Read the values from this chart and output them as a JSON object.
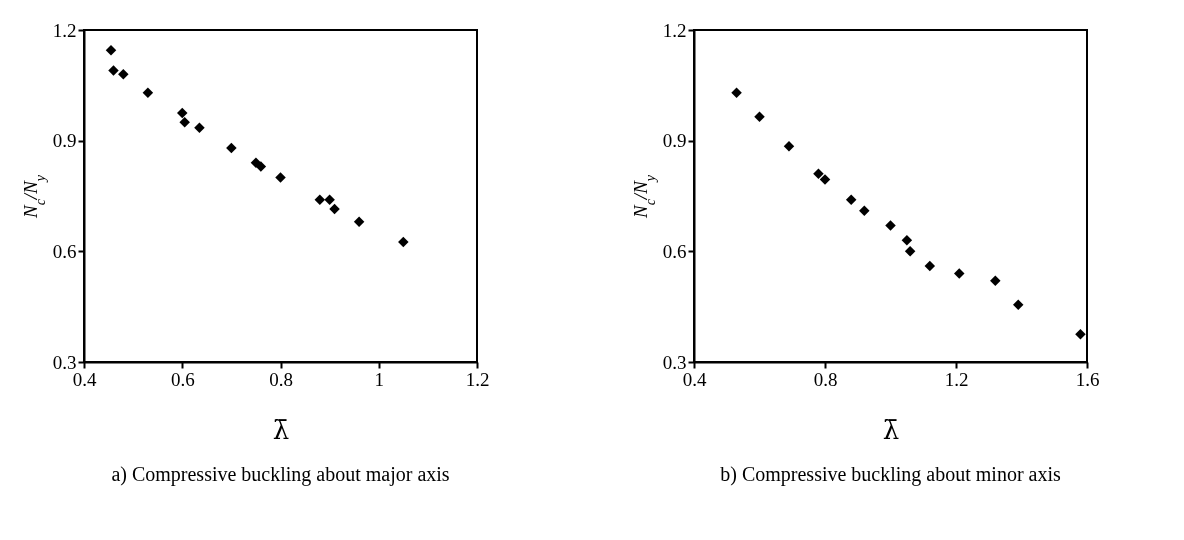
{
  "chart_data": [
    {
      "type": "scatter",
      "title": "a) Compressive buckling about major axis",
      "xlabel": "λ̄",
      "ylabel": "N$_{c}$/N$_{y}$",
      "marker": "diamond",
      "grid": false,
      "xlim": [
        0.4,
        1.2
      ],
      "xticks": [
        0.4,
        0.6,
        0.8,
        1,
        1.2
      ],
      "ylim": [
        0.3,
        1.2
      ],
      "yticks": [
        0.3,
        0.6,
        0.9,
        1.2
      ],
      "series": [
        {
          "color": "#000000",
          "x": [
            0.455,
            0.46,
            0.48,
            0.53,
            0.6,
            0.605,
            0.635,
            0.7,
            0.75,
            0.76,
            0.8,
            0.88,
            0.9,
            0.91,
            0.96,
            1.05
          ],
          "values": [
            1.145,
            1.09,
            1.08,
            1.03,
            0.975,
            0.95,
            0.935,
            0.88,
            0.84,
            0.83,
            0.8,
            0.74,
            0.74,
            0.715,
            0.68,
            0.625
          ]
        }
      ]
    },
    {
      "type": "scatter",
      "title": "b) Compressive buckling about minor axis",
      "xlabel": "λ̄",
      "ylabel": "N$_{c}$/N$_{y}$",
      "marker": "diamond",
      "grid": false,
      "xlim": [
        0.4,
        1.6
      ],
      "xticks": [
        0.4,
        0.8,
        1.2,
        1.6
      ],
      "ylim": [
        0.3,
        1.2
      ],
      "yticks": [
        0.3,
        0.6,
        0.9,
        1.2
      ],
      "series": [
        {
          "color": "#000000",
          "x": [
            0.53,
            0.6,
            0.69,
            0.78,
            0.8,
            0.88,
            0.92,
            1.0,
            1.05,
            1.06,
            1.12,
            1.21,
            1.32,
            1.39,
            1.58
          ],
          "values": [
            1.03,
            0.965,
            0.885,
            0.81,
            0.795,
            0.74,
            0.71,
            0.67,
            0.63,
            0.6,
            0.56,
            0.54,
            0.52,
            0.455,
            0.375
          ]
        }
      ]
    }
  ]
}
